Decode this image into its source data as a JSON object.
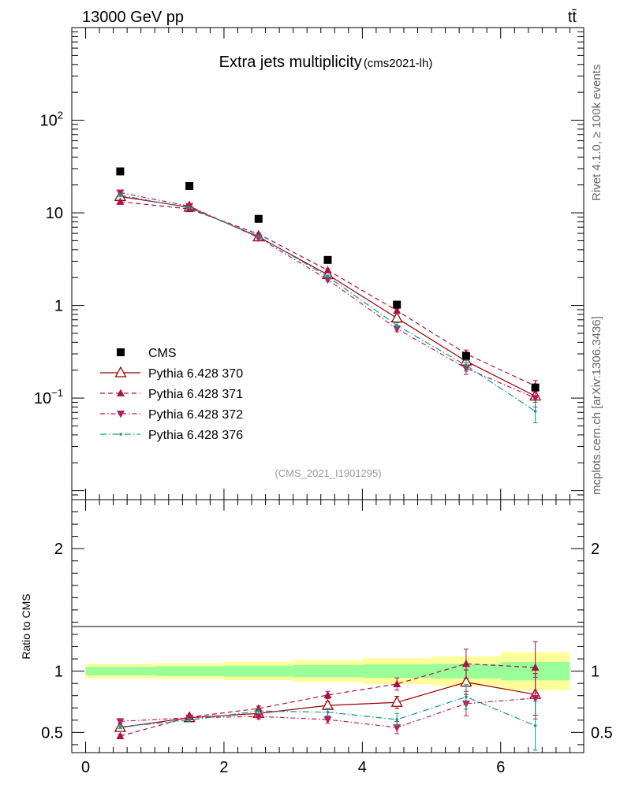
{
  "header": {
    "energy_label": "13000 GeV pp",
    "process_label": "tt̄",
    "plot_title": "Extra jets multiplicity",
    "analysis_tag": "(cms2021-lh)",
    "analysis_id": "(CMS_2021_I1901295)",
    "rivet_label": "Rivet 4.1.0, ≥ 100k events",
    "site_label": "mcplots.cern.ch [arXiv:1306.3436]"
  },
  "chart_data": [
    {
      "type": "scatter",
      "panel": "main",
      "yscale": "log",
      "xlim": [
        -0.2,
        7.2
      ],
      "ylim": [
        0.008,
        1000
      ],
      "y_ticks": [
        {
          "value": 100,
          "base": "10",
          "exp": "2"
        },
        {
          "value": 10,
          "label": "10"
        },
        {
          "value": 1,
          "label": "1"
        },
        {
          "value": 0.1,
          "base": "10",
          "exp": "−1"
        }
      ],
      "legend_position": "lower-left",
      "series": [
        {
          "name": "CMS",
          "key": "cms",
          "color": "#000000",
          "marker": "square",
          "x": [
            0.5,
            1.5,
            2.5,
            3.5,
            4.5,
            5.5,
            6.5
          ],
          "y": [
            28,
            19.5,
            8.6,
            3.1,
            1.02,
            0.285,
            0.13
          ]
        },
        {
          "name": "Pythia 6.428 370",
          "key": "p370",
          "color": "#990000",
          "marker": "triangle-up-open",
          "dash": "",
          "x": [
            0.5,
            1.5,
            2.5,
            3.5,
            4.5,
            5.5,
            6.5
          ],
          "y": [
            15,
            11.5,
            5.5,
            2.15,
            0.73,
            0.25,
            0.105
          ],
          "err": [
            0.5,
            0.3,
            0.15,
            0.08,
            0.04,
            0.02,
            0.015
          ]
        },
        {
          "name": "Pythia 6.428 371",
          "key": "p371",
          "color": "#aa1144",
          "marker": "triangle-up",
          "dash": "6,4",
          "x": [
            0.5,
            1.5,
            2.5,
            3.5,
            4.5,
            5.5,
            6.5
          ],
          "y": [
            13.2,
            11.0,
            5.9,
            2.4,
            0.88,
            0.3,
            0.135
          ],
          "err": [
            0.5,
            0.3,
            0.15,
            0.08,
            0.04,
            0.03,
            0.02
          ]
        },
        {
          "name": "Pythia 6.428 372",
          "key": "p372",
          "color": "#b81c5a",
          "marker": "triangle-down",
          "dash": "6,3,1.5,3",
          "x": [
            0.5,
            1.5,
            2.5,
            3.5,
            4.5,
            5.5,
            6.5
          ],
          "y": [
            16.5,
            11.8,
            5.4,
            1.9,
            0.56,
            0.21,
            0.1
          ],
          "err": [
            0.5,
            0.3,
            0.15,
            0.08,
            0.04,
            0.03,
            0.02
          ]
        },
        {
          "name": "Pythia 6.428 376",
          "key": "p376",
          "color": "#119988",
          "marker": "dot",
          "dash": "8,3,1.5,3",
          "x": [
            0.5,
            1.5,
            2.5,
            3.5,
            4.5,
            5.5,
            6.5
          ],
          "y": [
            15.5,
            11.3,
            5.6,
            2.05,
            0.61,
            0.225,
            0.072
          ],
          "err": [
            0.5,
            0.3,
            0.15,
            0.08,
            0.04,
            0.03,
            0.018
          ]
        }
      ]
    },
    {
      "type": "scatter",
      "panel": "ratio",
      "ylabel": "Ratio to CMS",
      "xlim": [
        -0.2,
        7.2
      ],
      "ylim": [
        0.335,
        2.4
      ],
      "x_ticks": [
        0,
        2,
        4,
        6
      ],
      "y_ticks": [
        0.5,
        1,
        2
      ],
      "bands": {
        "bin_edges": [
          0,
          1,
          2,
          3,
          4,
          5,
          6,
          7
        ],
        "inner": [
          0.035,
          0.04,
          0.045,
          0.05,
          0.055,
          0.06,
          0.075
        ],
        "outer": [
          0.06,
          0.065,
          0.075,
          0.09,
          0.105,
          0.12,
          0.155
        ],
        "inner_color": "#99ff99",
        "outer_color": "#ffff99"
      },
      "series": [
        {
          "key": "p370",
          "x": [
            0.5,
            1.5,
            2.5,
            3.5,
            4.5,
            5.5,
            6.5
          ],
          "y": [
            0.54,
            0.62,
            0.655,
            0.72,
            0.745,
            0.91,
            0.81
          ],
          "err": [
            0.015,
            0.015,
            0.02,
            0.03,
            0.05,
            0.1,
            0.17
          ]
        },
        {
          "key": "p371",
          "x": [
            0.5,
            1.5,
            2.5,
            3.5,
            4.5,
            5.5,
            6.5
          ],
          "y": [
            0.47,
            0.625,
            0.695,
            0.805,
            0.895,
            1.06,
            1.03
          ],
          "err": [
            0.015,
            0.015,
            0.02,
            0.03,
            0.05,
            0.12,
            0.21
          ]
        },
        {
          "key": "p372",
          "x": [
            0.5,
            1.5,
            2.5,
            3.5,
            4.5,
            5.5,
            6.5
          ],
          "y": [
            0.59,
            0.62,
            0.63,
            0.605,
            0.54,
            0.735,
            0.78
          ],
          "err": [
            0.015,
            0.015,
            0.02,
            0.03,
            0.05,
            0.1,
            0.17
          ]
        },
        {
          "key": "p376",
          "x": [
            0.5,
            1.5,
            2.5,
            3.5,
            4.5,
            5.5,
            6.5
          ],
          "y": [
            0.545,
            0.6,
            0.675,
            0.665,
            0.605,
            0.79,
            0.555
          ],
          "err": [
            0.015,
            0.015,
            0.02,
            0.03,
            0.05,
            0.1,
            0.2
          ]
        }
      ]
    }
  ]
}
